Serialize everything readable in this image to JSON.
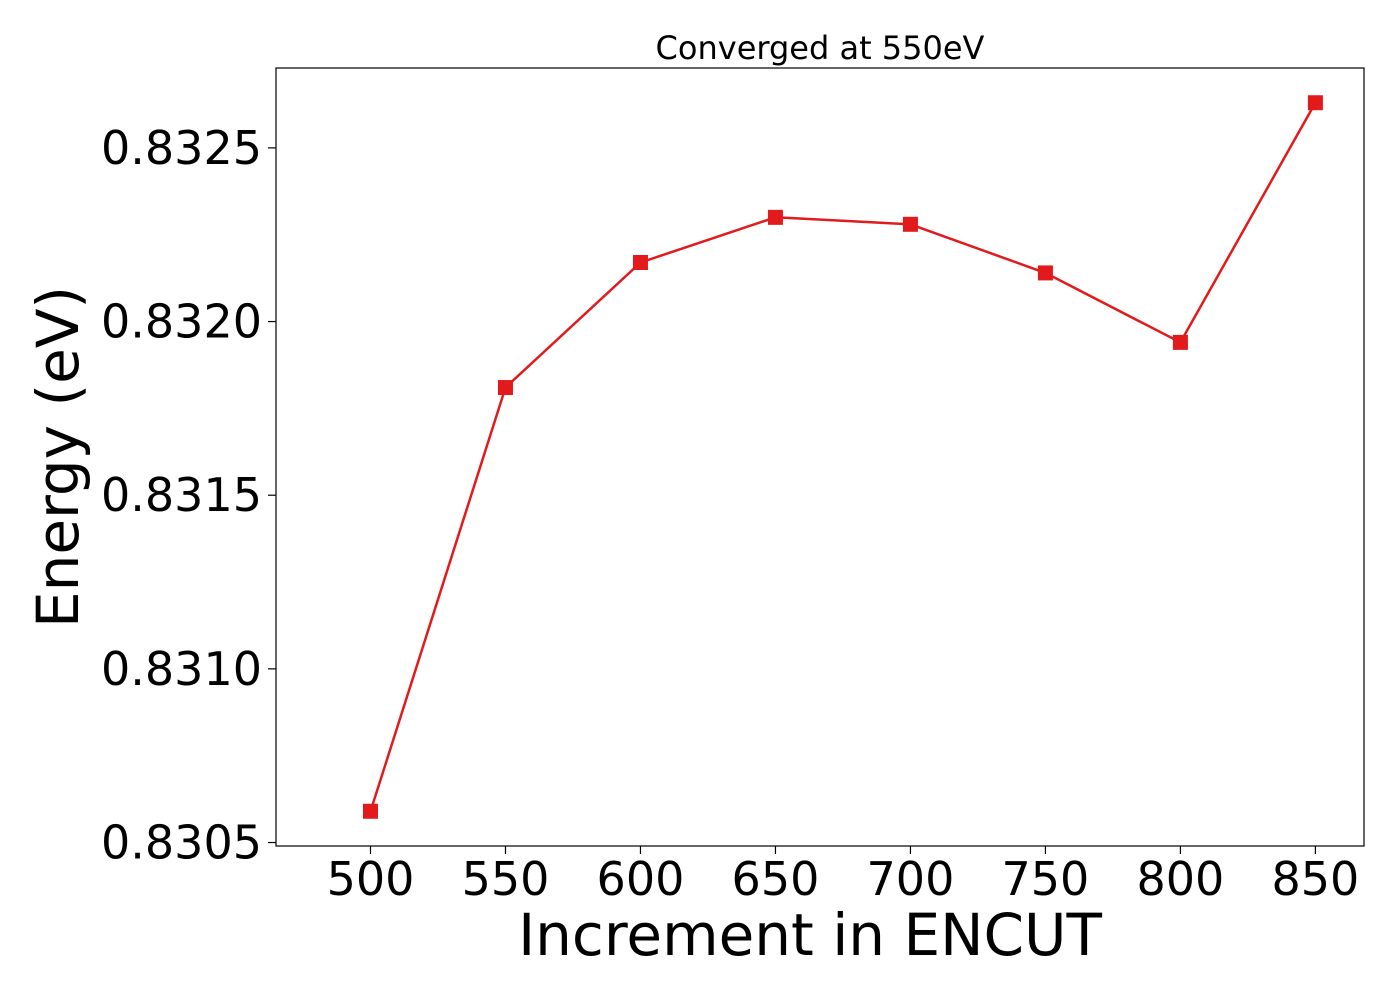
{
  "chart_data": {
    "type": "line",
    "title": "Converged at 550eV",
    "xlabel": "Increment in ENCUT",
    "ylabel": "Energy (eV)",
    "x": [
      500,
      550,
      600,
      650,
      700,
      750,
      800,
      850
    ],
    "series": [
      {
        "values": [
          0.83059,
          0.83181,
          0.83217,
          0.8323,
          0.83228,
          0.83214,
          0.83194,
          0.83263
        ],
        "color": "#e31a1c",
        "marker": "square"
      }
    ],
    "xlim": [
      465,
      868
    ],
    "ylim": [
      0.83049,
      0.83273
    ],
    "xticks": [
      500,
      550,
      600,
      650,
      700,
      750,
      800,
      850
    ],
    "xtick_labels": [
      "500",
      "550",
      "600",
      "650",
      "700",
      "750",
      "800",
      "850"
    ],
    "yticks": [
      0.8305,
      0.831,
      0.8315,
      0.832,
      0.8325
    ],
    "ytick_labels": [
      "0.8305",
      "0.8310",
      "0.8315",
      "0.8320",
      "0.8325"
    ],
    "grid": false,
    "legend": false
  }
}
